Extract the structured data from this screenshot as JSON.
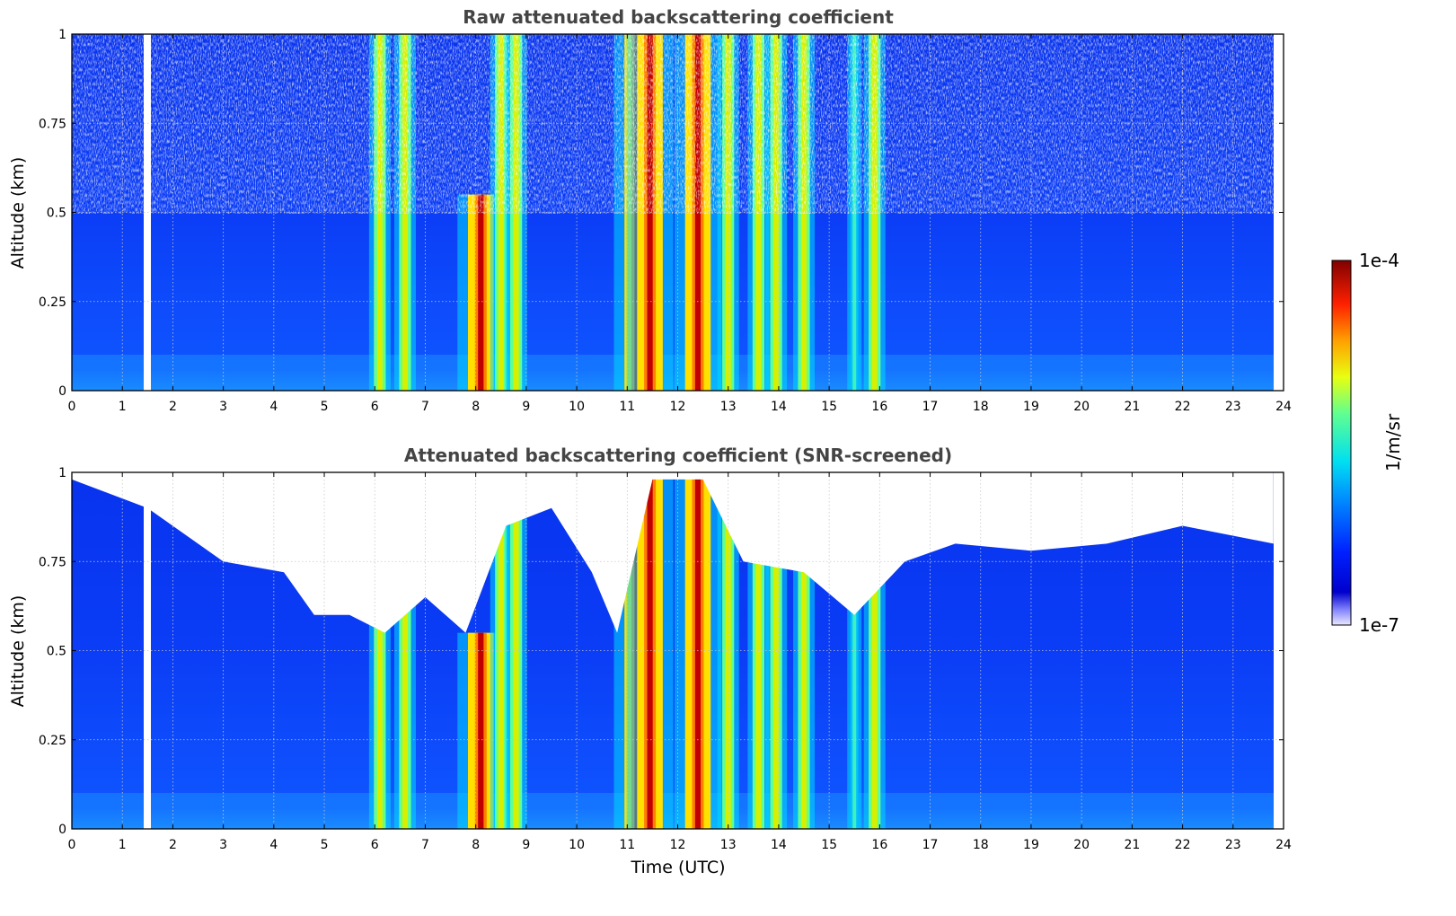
{
  "chart_data": [
    {
      "type": "heatmap",
      "title": "Raw attenuated backscattering coefficient",
      "xlabel": "",
      "ylabel": "Altitude (km)",
      "xlim": [
        0,
        24
      ],
      "ylim": [
        0,
        1
      ],
      "xticks": [
        "0",
        "1",
        "2",
        "3",
        "4",
        "5",
        "6",
        "7",
        "8",
        "9",
        "10",
        "11",
        "12",
        "13",
        "14",
        "15",
        "16",
        "17",
        "18",
        "19",
        "20",
        "21",
        "22",
        "23",
        "24"
      ],
      "yticks": [
        "0",
        "0.25",
        "0.5",
        "0.75",
        "1"
      ],
      "grid": true,
      "data_gap_hours": [
        1.43,
        1.57
      ],
      "data_end_hour": 23.8,
      "cloud_columns": [
        {
          "time": 6.1,
          "top": 1.0,
          "intensity": "medium"
        },
        {
          "time": 6.6,
          "top": 1.0,
          "intensity": "medium"
        },
        {
          "time": 8.1,
          "top": 0.55,
          "intensity": "high"
        },
        {
          "time": 8.5,
          "top": 1.0,
          "intensity": "medium"
        },
        {
          "time": 8.8,
          "top": 1.0,
          "intensity": "medium"
        },
        {
          "time": 11.2,
          "top": 1.0,
          "intensity": "high"
        },
        {
          "time": 11.45,
          "top": 1.0,
          "intensity": "high"
        },
        {
          "time": 12.4,
          "top": 1.0,
          "intensity": "high"
        },
        {
          "time": 13.0,
          "top": 1.0,
          "intensity": "medium"
        },
        {
          "time": 13.6,
          "top": 1.0,
          "intensity": "medium"
        },
        {
          "time": 13.95,
          "top": 1.0,
          "intensity": "medium"
        },
        {
          "time": 14.5,
          "top": 1.0,
          "intensity": "medium"
        },
        {
          "time": 15.5,
          "top": 1.0,
          "intensity": "low"
        },
        {
          "time": 15.9,
          "top": 1.0,
          "intensity": "medium"
        }
      ]
    },
    {
      "type": "heatmap",
      "title": "Attenuated backscattering coefficient (SNR-screened)",
      "xlabel": "Time (UTC)",
      "ylabel": "Altitude (km)",
      "xlim": [
        0,
        24
      ],
      "ylim": [
        0,
        1
      ],
      "xticks": [
        "0",
        "1",
        "2",
        "3",
        "4",
        "5",
        "6",
        "7",
        "8",
        "9",
        "10",
        "11",
        "12",
        "13",
        "14",
        "15",
        "16",
        "17",
        "18",
        "19",
        "20",
        "21",
        "22",
        "23",
        "24"
      ],
      "yticks": [
        "0",
        "0.25",
        "0.5",
        "0.75",
        "1"
      ],
      "grid": true,
      "data_gap_hours": [
        1.43,
        1.57
      ],
      "data_end_hour": 23.8,
      "screened_top_km": [
        [
          0,
          0.98
        ],
        [
          1.5,
          0.9
        ],
        [
          3,
          0.75
        ],
        [
          4.2,
          0.72
        ],
        [
          4.8,
          0.6
        ],
        [
          5.5,
          0.6
        ],
        [
          6.2,
          0.55
        ],
        [
          7,
          0.65
        ],
        [
          7.8,
          0.55
        ],
        [
          8.6,
          0.85
        ],
        [
          9.5,
          0.9
        ],
        [
          10.3,
          0.72
        ],
        [
          10.8,
          0.55
        ],
        [
          11.5,
          0.98
        ],
        [
          12.5,
          0.98
        ],
        [
          13.3,
          0.75
        ],
        [
          14.5,
          0.72
        ],
        [
          15.5,
          0.6
        ],
        [
          16.5,
          0.75
        ],
        [
          17.5,
          0.8
        ],
        [
          19,
          0.78
        ],
        [
          20.5,
          0.8
        ],
        [
          22,
          0.85
        ],
        [
          23.8,
          0.8
        ]
      ]
    }
  ],
  "colorbar": {
    "label": "1/m/sr",
    "max_label": "1e-4",
    "min_label": "1e-7",
    "scale": "log",
    "colormap": "jet"
  }
}
